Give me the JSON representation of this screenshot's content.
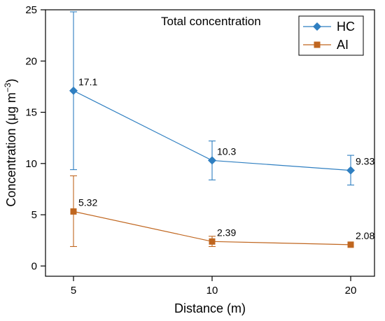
{
  "chart_data": {
    "type": "line",
    "annotation": "Total concentration",
    "xlabel": "Distance (m)",
    "ylabel_main": "Concentration (μg m",
    "ylabel_sup": "−3",
    "ylabel_close": ")",
    "categories": [
      "5",
      "10",
      "20"
    ],
    "y_ticks": [
      0,
      5,
      10,
      15,
      20,
      25
    ],
    "ylim": [
      -1,
      25
    ],
    "grid": false,
    "legend_position": "top-right",
    "series": [
      {
        "name": "HC",
        "color": "#2f7fc1",
        "marker": "diamond",
        "values": [
          17.1,
          10.3,
          9.33
        ],
        "labels": [
          "17.1",
          "10.3",
          "9.33"
        ],
        "error_low": [
          9.4,
          8.4,
          7.9
        ],
        "error_high": [
          24.8,
          12.2,
          10.8
        ]
      },
      {
        "name": "AI",
        "color": "#c0661f",
        "marker": "square",
        "values": [
          5.32,
          2.39,
          2.08
        ],
        "labels": [
          "5.32",
          "2.39",
          "2.08"
        ],
        "error_low": [
          1.9,
          1.9,
          2.08
        ],
        "error_high": [
          8.8,
          2.9,
          2.08
        ]
      }
    ]
  }
}
